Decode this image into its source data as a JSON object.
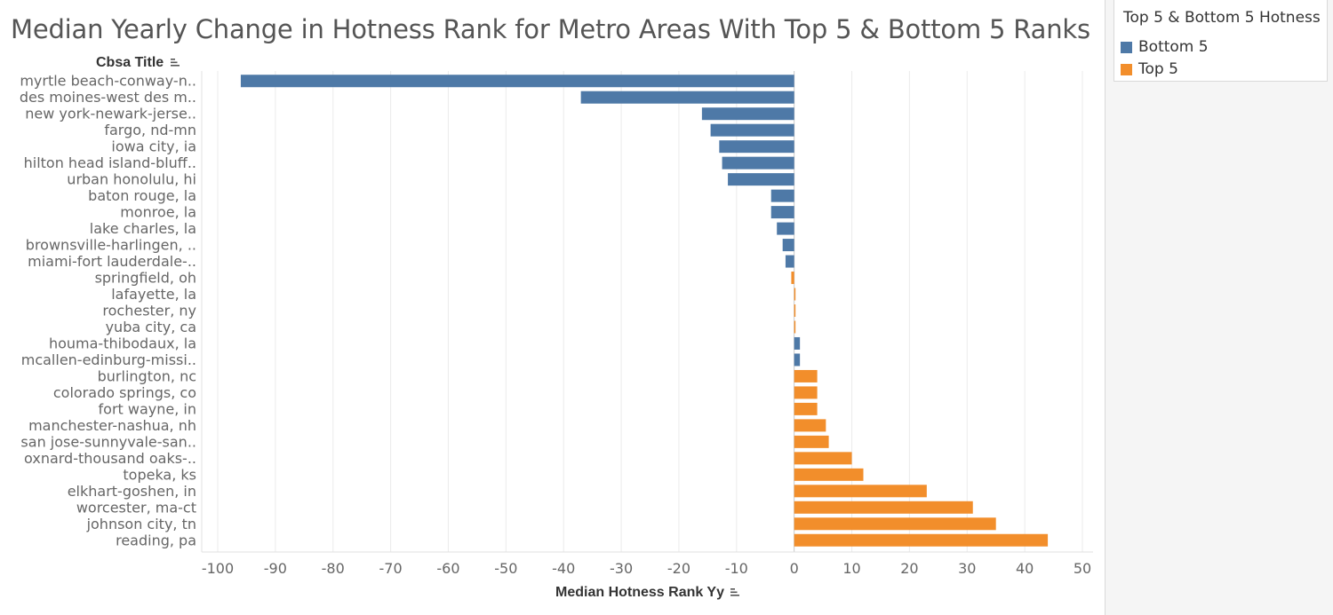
{
  "colors": {
    "bottom": "#4e79a7",
    "top": "#f28e2b",
    "grid": "#ebebeb",
    "zero": "#c8c8c8"
  },
  "legend": {
    "title": "Top 5 & Bottom 5 Hotness",
    "items": [
      {
        "label": "Bottom 5",
        "color": "#4e79a7"
      },
      {
        "label": "Top 5",
        "color": "#f28e2b"
      }
    ]
  },
  "chart_data": {
    "type": "bar",
    "orientation": "horizontal",
    "title": "Median Yearly Change in Hotness Rank for Metro Areas With Top 5 & Bottom 5 Ranks",
    "ylabel": "Cbsa Title",
    "xlabel": "Median Hotness Rank Yy",
    "xlim": [
      -100,
      50
    ],
    "xticks": [
      -100,
      -90,
      -80,
      -70,
      -60,
      -50,
      -40,
      -30,
      -20,
      -10,
      0,
      10,
      20,
      30,
      40,
      50
    ],
    "grid": true,
    "legend_position": "right",
    "categories": [
      "myrtle beach-conway-n..",
      "des moines-west des m..",
      "new york-newark-jerse..",
      "fargo, nd-mn",
      "iowa city, ia",
      "hilton head island-bluff..",
      "urban honolulu, hi",
      "baton rouge, la",
      "monroe, la",
      "lake charles, la",
      "brownsville-harlingen, ..",
      "miami-fort lauderdale-..",
      "springfield, oh",
      "lafayette, la",
      "rochester, ny",
      "yuba city, ca",
      "houma-thibodaux, la",
      "mcallen-edinburg-missi..",
      "burlington, nc",
      "colorado springs, co",
      "fort wayne, in",
      "manchester-nashua, nh",
      "san jose-sunnyvale-san..",
      "oxnard-thousand oaks-..",
      "topeka, ks",
      "elkhart-goshen, in",
      "worcester, ma-ct",
      "johnson city, tn",
      "reading, pa"
    ],
    "values": [
      -96,
      -37,
      -16,
      -14.5,
      -13,
      -12.5,
      -11.5,
      -4,
      -4,
      -3,
      -2,
      -1.5,
      -0.5,
      0.2,
      0.2,
      0.2,
      1,
      1,
      4,
      4,
      4,
      5.5,
      6,
      10,
      12,
      23,
      31,
      35,
      44
    ],
    "groups": [
      "Bottom 5",
      "Bottom 5",
      "Bottom 5",
      "Bottom 5",
      "Bottom 5",
      "Bottom 5",
      "Bottom 5",
      "Bottom 5",
      "Bottom 5",
      "Bottom 5",
      "Bottom 5",
      "Bottom 5",
      "Top 5",
      "Top 5",
      "Top 5",
      "Top 5",
      "Bottom 5",
      "Bottom 5",
      "Top 5",
      "Top 5",
      "Top 5",
      "Top 5",
      "Top 5",
      "Top 5",
      "Top 5",
      "Top 5",
      "Top 5",
      "Top 5",
      "Top 5"
    ]
  }
}
